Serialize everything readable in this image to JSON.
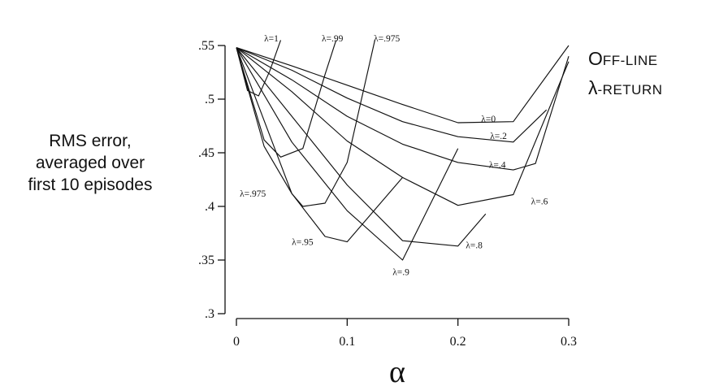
{
  "chart_data": {
    "type": "line",
    "title": "",
    "xlabel": "α",
    "ylabel_lines": [
      "RMS error,",
      "averaged over",
      "first 10 episodes"
    ],
    "xlim": [
      0,
      0.3
    ],
    "ylim": [
      0.3,
      0.55
    ],
    "xticks": [
      0,
      0.1,
      0.2,
      0.3
    ],
    "xtick_labels": [
      "0",
      "0.1",
      "0.2",
      "0.3"
    ],
    "yticks": [
      0.3,
      0.35,
      0.4,
      0.45,
      0.5,
      0.55
    ],
    "ytick_labels": [
      ".3",
      ".35",
      ".4",
      ".45",
      ".5",
      ".55"
    ],
    "grid": false,
    "method_label": {
      "lambda": "λ",
      "line1_first": "O",
      "line1_rest": "FF-LINE",
      "line2_rest": "-RETURN"
    },
    "series": [
      {
        "name": "λ=0",
        "x": [
          0,
          0.05,
          0.1,
          0.15,
          0.2,
          0.25,
          0.3
        ],
        "y": [
          0.548,
          0.531,
          0.513,
          0.495,
          0.478,
          0.479,
          0.55
        ]
      },
      {
        "name": "λ=.2",
        "x": [
          0,
          0.05,
          0.1,
          0.15,
          0.2,
          0.25,
          0.28
        ],
        "y": [
          0.548,
          0.527,
          0.501,
          0.479,
          0.465,
          0.46,
          0.49
        ]
      },
      {
        "name": "λ=.4",
        "x": [
          0,
          0.05,
          0.1,
          0.15,
          0.2,
          0.25,
          0.27,
          0.3
        ],
        "y": [
          0.548,
          0.518,
          0.484,
          0.458,
          0.441,
          0.434,
          0.44,
          0.54
        ]
      },
      {
        "name": "λ=.6",
        "x": [
          0,
          0.05,
          0.1,
          0.15,
          0.2,
          0.25,
          0.3
        ],
        "y": [
          0.548,
          0.507,
          0.461,
          0.427,
          0.401,
          0.411,
          0.535
        ]
      },
      {
        "name": "λ=.8",
        "x": [
          0,
          0.05,
          0.1,
          0.15,
          0.2,
          0.225
        ],
        "y": [
          0.548,
          0.484,
          0.42,
          0.368,
          0.363,
          0.393
        ]
      },
      {
        "name": "λ=.9",
        "x": [
          0,
          0.05,
          0.1,
          0.15,
          0.2
        ],
        "y": [
          0.548,
          0.46,
          0.396,
          0.35,
          0.454
        ]
      },
      {
        "name": "λ=.95",
        "x": [
          0,
          0.05,
          0.08,
          0.1,
          0.15
        ],
        "y": [
          0.548,
          0.412,
          0.372,
          0.367,
          0.427
        ]
      },
      {
        "name": "λ=.975",
        "x": [
          0,
          0.025,
          0.05,
          0.06,
          0.08,
          0.1,
          0.125
        ],
        "y": [
          0.548,
          0.456,
          0.412,
          0.4,
          0.403,
          0.441,
          0.555
        ]
      },
      {
        "name": "λ=.99",
        "x": [
          0,
          0.025,
          0.04,
          0.06,
          0.08,
          0.09
        ],
        "y": [
          0.548,
          0.462,
          0.446,
          0.454,
          0.523,
          0.555
        ]
      },
      {
        "name": "λ=1",
        "x": [
          0,
          0.01,
          0.02,
          0.03,
          0.04
        ],
        "y": [
          0.548,
          0.508,
          0.503,
          0.526,
          0.555
        ]
      }
    ],
    "annotations": [
      {
        "text": "λ=0",
        "x": 0.221,
        "y": 0.482
      },
      {
        "text": "λ=.2",
        "x": 0.229,
        "y": 0.466
      },
      {
        "text": "λ=.4",
        "x": 0.228,
        "y": 0.439
      },
      {
        "text": "λ=.6",
        "x": 0.266,
        "y": 0.405
      },
      {
        "text": "λ=.8",
        "x": 0.207,
        "y": 0.364
      },
      {
        "text": "λ=.9",
        "x": 0.141,
        "y": 0.339
      },
      {
        "text": "λ=.95",
        "x": 0.05,
        "y": 0.367
      },
      {
        "text": "λ=.975",
        "x": 0.003,
        "y": 0.412
      },
      {
        "text": "λ=1",
        "x": 0.025,
        "y": 0.557
      },
      {
        "text": "λ=.99",
        "x": 0.077,
        "y": 0.557
      },
      {
        "text": "λ=.975",
        "x": 0.124,
        "y": 0.557
      }
    ]
  }
}
